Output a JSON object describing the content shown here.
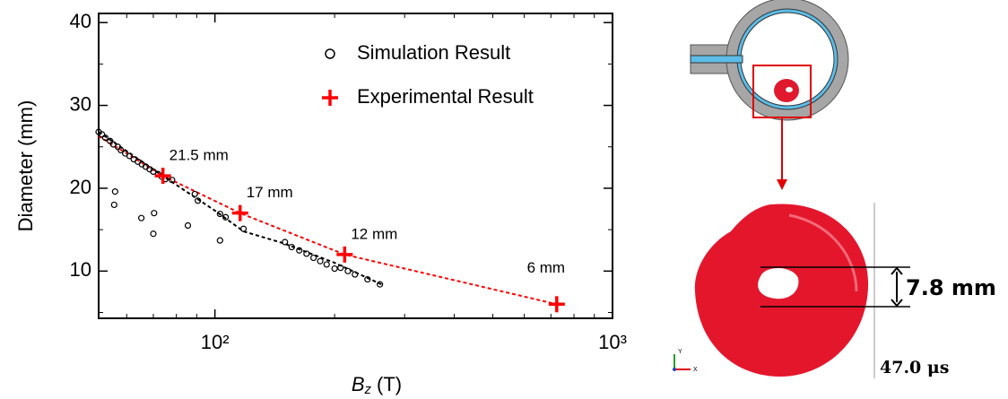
{
  "chart_data": {
    "type": "scatter",
    "ylabel": "Diameter (mm)",
    "xlabel": {
      "symbol": "B",
      "subscript": "z",
      "unit": "(T)"
    },
    "xscale": "log",
    "xlim": [
      51,
      1000
    ],
    "ylim": [
      4.3,
      41.1
    ],
    "xticks": [
      {
        "value": 100,
        "label": "10²"
      },
      {
        "value": 1000,
        "label": "10³"
      }
    ],
    "xminorticks": [
      60,
      70,
      80,
      90,
      200,
      300,
      400,
      500,
      600,
      700,
      800,
      900
    ],
    "yticks": [
      10,
      20,
      30,
      40
    ],
    "yminorticks": [
      5,
      15,
      25,
      35
    ],
    "legend": "top-right",
    "series": [
      {
        "name": "Simulation Result",
        "color": "#000000",
        "marker": "circle",
        "x": [
          51,
          52,
          53,
          54.5,
          55.5,
          57,
          58,
          59.5,
          61,
          62.5,
          64,
          65.5,
          67,
          68.5,
          70,
          72,
          73.5,
          75,
          56.1,
          55.8,
          65.3,
          70.3,
          70,
          85.5,
          103,
          78,
          89,
          90.6,
          103,
          106.4,
          118,
          150,
          156,
          163,
          170,
          177,
          184,
          191,
          200,
          207,
          216,
          225,
          242,
          260
        ],
        "values": [
          26.8,
          26.5,
          26.1,
          25.7,
          25.3,
          25,
          24.6,
          24.2,
          23.9,
          23.5,
          23.2,
          22.9,
          22.6,
          22.3,
          22,
          21.7,
          21.4,
          21.1,
          19.6,
          18,
          16.4,
          17,
          14.5,
          15.5,
          13.7,
          21,
          19.3,
          18.5,
          16.9,
          16.5,
          15.1,
          13.5,
          12.9,
          12.5,
          12.1,
          11.6,
          11.2,
          10.8,
          10.3,
          10.4,
          10,
          9.6,
          9,
          8.4
        ]
      },
      {
        "name": "Experimental Result",
        "color": "#ff0000",
        "marker": "plus",
        "x": [
          74,
          115.7,
          212,
          724
        ],
        "values": [
          21.5,
          17,
          12,
          6
        ],
        "value_labels": [
          "21.5 mm",
          "17 mm",
          "12 mm",
          "6 mm"
        ]
      },
      {
        "color": "#ff0000",
        "marker": "dashed-line",
        "x": [
          51,
          74,
          115.7,
          212,
          724
        ],
        "values": [
          26.3,
          21.5,
          17,
          12,
          6
        ]
      },
      {
        "color": "#000000",
        "marker": "dashed-line",
        "x": [
          51,
          75,
          100,
          118,
          150,
          200,
          265
        ],
        "values": [
          26.8,
          21.3,
          17.3,
          14.8,
          13.3,
          11,
          8.3
        ]
      }
    ]
  },
  "figure": {
    "measurement": "7.8 mm",
    "time": "47.0 μs",
    "axis_y": "Y",
    "axis_x": "X"
  }
}
